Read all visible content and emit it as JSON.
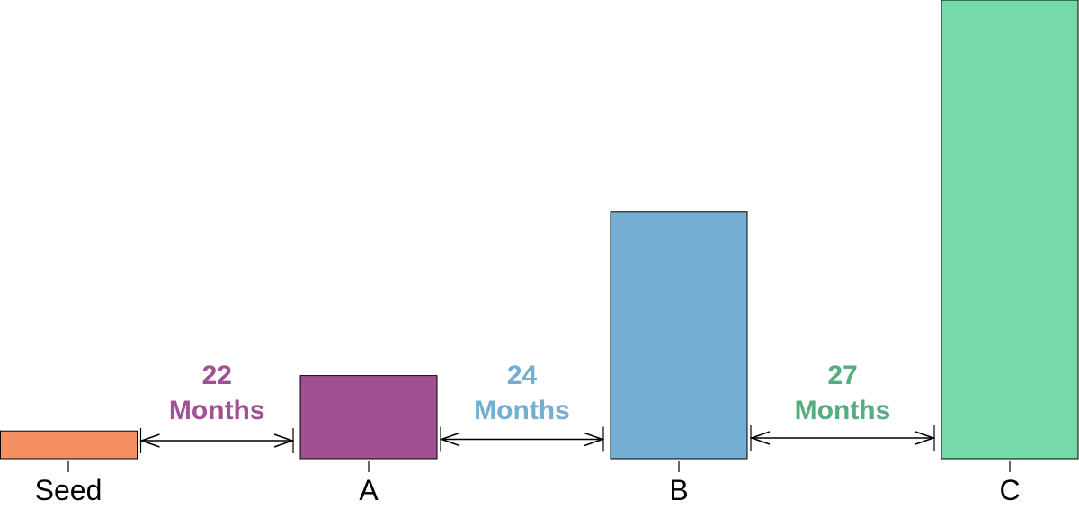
{
  "chart_data": {
    "type": "bar",
    "categories": [
      "Seed",
      "A",
      "B",
      "C"
    ],
    "values": [
      3.2,
      9.6,
      28.5,
      53
    ],
    "colors": [
      "#f59060",
      "#a35093",
      "#74aed3",
      "#76d9a8"
    ],
    "ylim": [
      0,
      53
    ],
    "grid": false,
    "gaps": [
      {
        "from": "Seed",
        "to": "A",
        "number": "22",
        "unit": "Months",
        "color": "#a35093"
      },
      {
        "from": "A",
        "to": "B",
        "number": "24",
        "unit": "Months",
        "color": "#74aed3"
      },
      {
        "from": "B",
        "to": "C",
        "number": "27",
        "unit": "Months",
        "color": "#56ad7f"
      }
    ]
  }
}
